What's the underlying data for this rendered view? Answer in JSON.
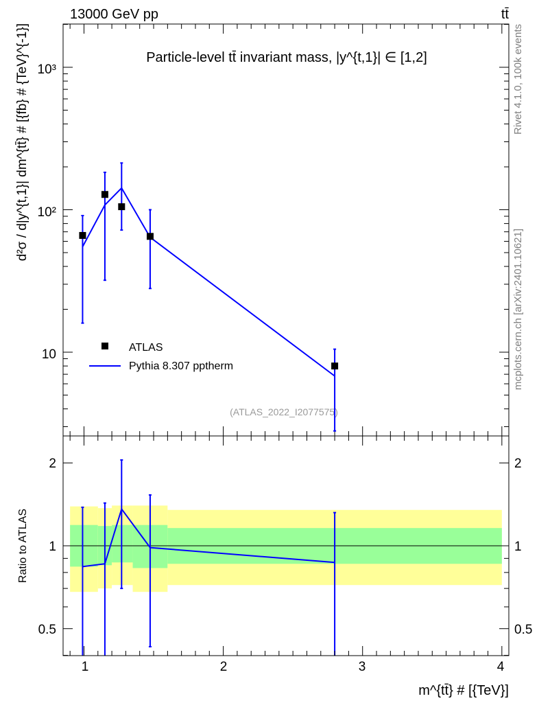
{
  "header": {
    "energy": "13000 GeV pp",
    "process": "tt̄"
  },
  "side_labels": {
    "rivet": "Rivet 4.1.0,  100k events",
    "mcplots": "mcplots.cern.ch [arXiv:2401.10621]"
  },
  "watermark": "(ATLAS_2022_I2077575)",
  "colors": {
    "data": "#000000",
    "mc": "#0000ff",
    "band_inner": "#99ff99",
    "band_outer": "#ffff99"
  },
  "chart_data": [
    {
      "type": "scatter",
      "panel": "main",
      "title": "Particle-level tt̄ invariant mass, |y^{t,1}| ∈ [1,2]",
      "ylabel": "d²σ / d|y^{t,1}| dm^{tt̄} # [{fb} # {TeV}^{-1}]",
      "yscale": "log",
      "ylim": [
        2.8,
        2000
      ],
      "xlim": [
        0.85,
        4.05
      ],
      "y_ticks": [
        "10",
        "10²",
        "10³"
      ],
      "legend_position": "center-left",
      "series": [
        {
          "name": "ATLAS",
          "x": [
            0.99,
            1.15,
            1.27,
            1.475,
            2.8
          ],
          "values": [
            66,
            128,
            105,
            65,
            8
          ],
          "err_low": [
            50,
            96,
            33,
            37,
            5.2
          ],
          "err_high": [
            25,
            55,
            108,
            35,
            2.5
          ]
        },
        {
          "name": "Pythia 8.307 pptherm",
          "x": [
            0.99,
            1.15,
            1.27,
            1.475,
            2.8
          ],
          "values": [
            55,
            108,
            142,
            64,
            6.8
          ]
        }
      ]
    },
    {
      "type": "line",
      "panel": "ratio",
      "ylabel": "Ratio to ATLAS",
      "xlabel": "m^{tt̄} # [{TeV}]",
      "yscale": "log",
      "ylim": [
        0.4,
        2.3
      ],
      "xlim": [
        0.85,
        4.05
      ],
      "x_ticks": [
        "1",
        "2",
        "3",
        "4"
      ],
      "y_ticks": [
        "0.5",
        "1",
        "2"
      ],
      "bands": {
        "edges": [
          0.9,
          1.1,
          1.2,
          1.35,
          1.6,
          4.0
        ],
        "inner_low": [
          0.84,
          0.85,
          0.87,
          0.83,
          0.86
        ],
        "inner_high": [
          1.19,
          1.18,
          1.19,
          1.19,
          1.16
        ],
        "outer_low": [
          0.68,
          0.7,
          0.72,
          0.68,
          0.72
        ],
        "outer_high": [
          1.39,
          1.37,
          1.4,
          1.4,
          1.35
        ]
      },
      "data_points": {
        "x": [
          0.99,
          1.15,
          1.27,
          1.475,
          2.8
        ],
        "ratio_low": [
          0.25,
          0.25,
          0.7,
          0.43,
          0.35
        ],
        "ratio_high": [
          1.38,
          1.43,
          2.05,
          1.53,
          1.32
        ]
      },
      "series": [
        {
          "name": "Pythia 8.307 pptherm",
          "x": [
            0.99,
            1.15,
            1.27,
            1.475,
            2.8
          ],
          "values": [
            0.84,
            0.86,
            1.36,
            0.985,
            0.87
          ]
        }
      ]
    }
  ]
}
